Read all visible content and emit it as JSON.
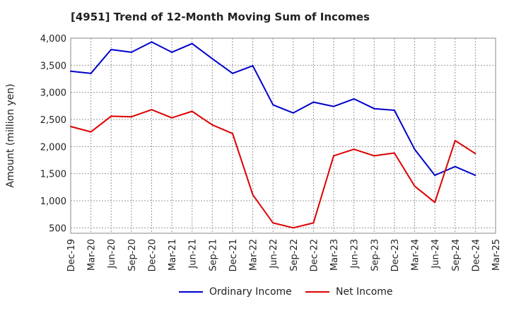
{
  "chart_data": {
    "type": "line",
    "title": "[4951]  Trend of 12-Month Moving Sum of Incomes",
    "xlabel": "",
    "ylabel": "Amount (million yen)",
    "ylim": [
      400,
      4000
    ],
    "yticks": [
      500,
      1000,
      1500,
      2000,
      2500,
      3000,
      3500,
      4000
    ],
    "ytick_labels": [
      "500",
      "1,000",
      "1,500",
      "2,000",
      "2,500",
      "3,000",
      "3,500",
      "4,000"
    ],
    "grid": true,
    "legend_position": "bottom-center",
    "categories": [
      "Dec-19",
      "Mar-20",
      "Jun-20",
      "Sep-20",
      "Dec-20",
      "Mar-21",
      "Jun-21",
      "Sep-21",
      "Dec-21",
      "Mar-22",
      "Jun-22",
      "Sep-22",
      "Dec-22",
      "Mar-23",
      "Jun-23",
      "Sep-23",
      "Dec-23",
      "Mar-24",
      "Jun-24",
      "Sep-24",
      "Dec-24",
      "Mar-25"
    ],
    "series": [
      {
        "name": "Ordinary Income",
        "color": "#0000cc",
        "values": [
          3390,
          3350,
          3790,
          3740,
          3930,
          3740,
          3900,
          3620,
          3350,
          3490,
          2770,
          2620,
          2820,
          2740,
          2880,
          2700,
          2670,
          1950,
          1470,
          1630,
          1470,
          null
        ]
      },
      {
        "name": "Net Income",
        "color": "#dd0000",
        "values": [
          2370,
          2270,
          2560,
          2550,
          2680,
          2530,
          2650,
          2400,
          2240,
          1110,
          590,
          500,
          590,
          1830,
          1950,
          1830,
          1880,
          1270,
          970,
          2110,
          1870,
          null
        ]
      }
    ]
  }
}
